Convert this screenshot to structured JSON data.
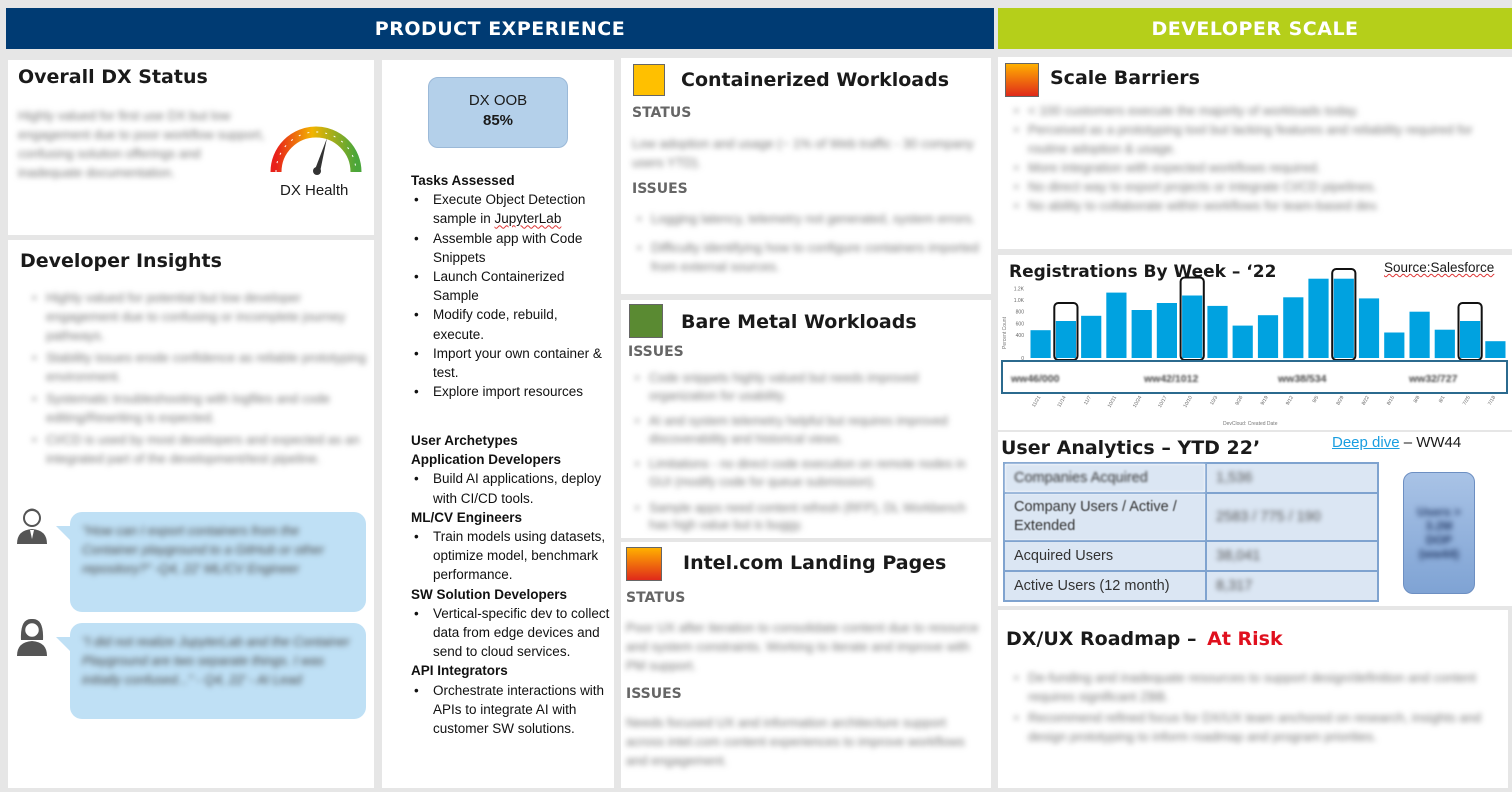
{
  "headers": {
    "left": "PRODUCT EXPERIENCE",
    "right": "DEVELOPER SCALE"
  },
  "colors": {
    "navy": "#003b73",
    "lime": "#b5cf1a",
    "blue_bar": "#00a2e0",
    "at_risk": "#e0101e",
    "link": "#1a9ee0",
    "yellow": "#ffc000",
    "green": "#5a8a32",
    "red_grad": "#e02a1a"
  },
  "overall": {
    "title": "Overall DX Status",
    "text": "Highly valued for first use DX but low engagement due to poor workflow support, confusing solution offerings and inadequate documentation.",
    "gauge_label": "DX Health"
  },
  "insights": {
    "title": "Developer Insights",
    "bullets": [
      "Highly valued for potential but low developer engagement due to confusing or incomplete journey pathways.",
      "Stability issues erode confidence as reliable prototyping environment.",
      "Systematic troubleshooting with logfiles and code editing/Rewriting is expected.",
      "CI/CD is used by most developers and expected as an integrated part of the development/test pipeline."
    ],
    "quote1": "\"How can I export containers from the Container playground to a GitHub or other repository?\" -Q4, 22' ML/CV Engineer",
    "quote2": "\"I did not realize JupyterLab and the Container Playground are two separate things. I was initially confused...\" - Q4, 22' - AI Lead",
    "avatar1_icon": "male-user-icon",
    "avatar2_icon": "female-user-icon"
  },
  "tasks": {
    "oob_label": "DX OOB",
    "oob_value": "85%",
    "assessed_title": "Tasks Assessed",
    "assessed": [
      "Execute Object Detection sample in JupyterLab",
      "Assemble app with Code Snippets",
      "Launch Containerized Sample",
      "Modify code, rebuild, execute.",
      "Import your own container & test.",
      "Explore import resources"
    ],
    "archetypes_title": "User Archetypes",
    "groups": [
      {
        "title": "Application Developers",
        "items": [
          "Build AI applications, deploy with CI/CD tools."
        ]
      },
      {
        "title": "ML/CV Engineers",
        "items": [
          "Train models using datasets, optimize model, benchmark performance."
        ]
      },
      {
        "title": "SW Solution Developers",
        "items": [
          "Vertical-specific dev to collect data from edge devices and send to cloud services."
        ]
      },
      {
        "title": "API Integrators",
        "items": [
          "Orchestrate interactions with APIs to integrate AI with customer SW solutions."
        ]
      }
    ]
  },
  "containerized": {
    "title": "Containerized Workloads",
    "status_label": "STATUS",
    "status_text": "Low adoption and usage (~ 1% of Web traffic - 30 company users YTD).",
    "issues_label": "ISSUES",
    "issues": [
      "Logging latency, telemetry not generated, system errors.",
      "Difficulty identifying how to configure containers imported from external sources."
    ]
  },
  "baremetal": {
    "title": "Bare Metal Workloads",
    "issues_label": "ISSUES",
    "issues": [
      "Code snippets highly valued but needs improved organization for usability.",
      "AI and system telemetry helpful but requires improved discoverability and historical views.",
      "Limitations - no direct code execution on remote nodes in GUI (modify code for queue submission).",
      "Sample apps need content refresh (RFP), DL Workbench has high value but is buggy."
    ]
  },
  "landing": {
    "title": "Intel.com Landing Pages",
    "status_label": "STATUS",
    "status_text": "Poor UX after iteration to consolidate content due to resource and system constraints. Working to iterate and improve with PM support.",
    "issues_label": "ISSUES",
    "issues_text": "Needs focused UX and information architecture support across intel.com content experiences to improve workflows and engagement."
  },
  "barriers": {
    "title": "Scale Barriers",
    "bullets": [
      "< 100 customers execute the majority of workloads today.",
      "Perceived as a prototyping tool but lacking features and reliability required for routine adoption & usage.",
      "More integration with expected workflows required.",
      "No direct way to export projects or integrate CI/CD pipelines.",
      "No ability to collaborate within workflows for team-based dev."
    ]
  },
  "registrations": {
    "title": "Registrations By Week – ‘22",
    "source": "Source:Salesforce",
    "callouts": [
      "ww46/000",
      "ww42/1012",
      "ww38/534",
      "ww32/727"
    ]
  },
  "chart_data": {
    "type": "bar",
    "title": "Registrations By Week – ‘22",
    "ylabel": "Percent Count",
    "xlabel": "DevCloud: Created Date",
    "ylim": [
      0,
      1400
    ],
    "yticks": [
      "0",
      "400",
      "600",
      "800",
      "1.0K",
      "1.2K"
    ],
    "values": [
      480,
      640,
      730,
      1130,
      830,
      950,
      1080,
      900,
      560,
      740,
      1050,
      1370,
      1370,
      1030,
      440,
      800,
      490,
      640,
      290
    ],
    "highlighted": [
      1,
      6,
      12,
      17
    ],
    "categories": [
      "11/21",
      "11/14",
      "11/7",
      "10/31",
      "10/24",
      "10/17",
      "10/10",
      "10/3",
      "9/26",
      "9/19",
      "9/12",
      "9/5",
      "8/29",
      "8/22",
      "8/15",
      "8/8",
      "8/1",
      "7/25",
      "7/18"
    ]
  },
  "analytics": {
    "title": "User Analytics – YTD 22’",
    "link": "Deep dive",
    "suffix": "– WW44",
    "rows": [
      {
        "label": "Companies Acquired",
        "value": "1,536"
      },
      {
        "label": "Company Users / Active / Extended",
        "value": "2583 / 775 / 190"
      },
      {
        "label": "Acquired Users",
        "value": "38,041"
      },
      {
        "label": "Active Users (12 month)",
        "value": "8,317"
      }
    ],
    "badge": "Users > 3.2M DOP (ww44)"
  },
  "roadmap": {
    "title": "DX/UX Roadmap –",
    "risk": "At Risk",
    "bullets": [
      "De-funding and inadequate resources to support design/definition and content requires significant ZBB.",
      "Recommend refined focus for DX/UX team anchored on research, insights and design prototyping to inform roadmap and program priorities."
    ]
  }
}
